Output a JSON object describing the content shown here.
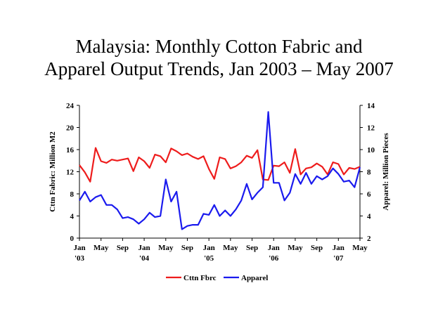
{
  "chart_data": {
    "type": "line",
    "title_line1": "Malaysia:  Monthly Cotton Fabric and",
    "title_line2": "Apparel Output Trends, Jan 2003 – May 2007",
    "ylabel_left": "Cttn Fabric:  Million M2",
    "ylabel_right": "Apparel:  Million Pieces",
    "ylim_left": [
      0,
      24
    ],
    "ylim_right": [
      2,
      14
    ],
    "yticks_left": [
      "0",
      "4",
      "8",
      "12",
      "16",
      "20",
      "24"
    ],
    "yticks_right": [
      "2",
      "4",
      "6",
      "8",
      "10",
      "12",
      "14"
    ],
    "x_tick_labels": [
      {
        "month": "Jan",
        "year": "'03"
      },
      {
        "month": "May",
        "year": ""
      },
      {
        "month": "Sep",
        "year": ""
      },
      {
        "month": "Jan",
        "year": "'04"
      },
      {
        "month": "May",
        "year": ""
      },
      {
        "month": "Sep",
        "year": ""
      },
      {
        "month": "Jan",
        "year": "'05"
      },
      {
        "month": "May",
        "year": ""
      },
      {
        "month": "Sep",
        "year": ""
      },
      {
        "month": "Jan",
        "year": "'06"
      },
      {
        "month": "May",
        "year": ""
      },
      {
        "month": "Sep",
        "year": ""
      },
      {
        "month": "Jan",
        "year": "'07"
      },
      {
        "month": "May",
        "year": ""
      }
    ],
    "series": [
      {
        "name": "Cttn Fbrc",
        "axis": "left",
        "color": "#ee1c1c",
        "values": [
          13.2,
          11.9,
          10.2,
          16.3,
          13.9,
          13.6,
          14.2,
          14.0,
          14.2,
          14.4,
          12.1,
          14.6,
          13.9,
          12.7,
          15.1,
          14.8,
          13.7,
          16.2,
          15.7,
          15.0,
          15.3,
          14.7,
          14.3,
          14.8,
          12.5,
          10.7,
          14.6,
          14.3,
          12.6,
          13.0,
          13.7,
          14.9,
          14.5,
          15.9,
          10.6,
          10.5,
          13.1,
          13.0,
          13.7,
          11.8,
          16.1,
          11.5,
          12.6,
          12.8,
          13.5,
          12.9,
          11.5,
          13.7,
          13.4,
          11.5,
          12.7,
          12.5,
          12.9
        ]
      },
      {
        "name": "Apparel",
        "axis": "right",
        "color": "#1a1aee",
        "values": [
          5.4,
          6.2,
          5.3,
          5.7,
          5.9,
          5.0,
          5.0,
          4.6,
          3.8,
          3.9,
          3.7,
          3.3,
          3.7,
          4.3,
          3.9,
          4.0,
          7.3,
          5.3,
          6.2,
          2.8,
          3.1,
          3.2,
          3.2,
          4.2,
          4.1,
          5.0,
          4.0,
          4.5,
          4.0,
          4.6,
          5.4,
          6.9,
          5.5,
          6.1,
          6.6,
          13.4,
          7.0,
          7.0,
          5.4,
          6.1,
          7.8,
          6.9,
          7.9,
          6.9,
          7.6,
          7.3,
          7.6,
          8.3,
          7.8,
          7.1,
          7.2,
          6.6,
          8.4
        ]
      }
    ],
    "legend_position": "bottom-center",
    "grid": false
  }
}
